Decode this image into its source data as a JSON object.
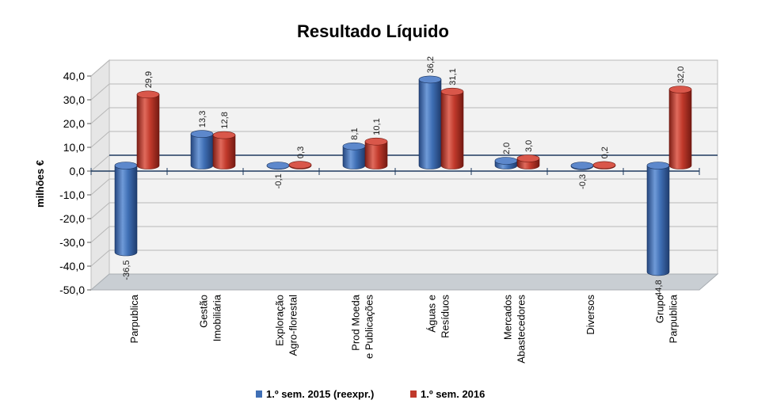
{
  "chart_data": {
    "type": "bar",
    "title": "Resultado Líquido",
    "ylabel": "milhões €",
    "ylim": [
      -50,
      40
    ],
    "yticks": [
      "40,0",
      "30,0",
      "20,0",
      "10,0",
      "0,0",
      "-10,0",
      "-20,0",
      "-30,0",
      "-40,0",
      "-50,0"
    ],
    "categories": [
      [
        "Parpublica"
      ],
      [
        "Gestão",
        "Imobiliária"
      ],
      [
        "Exploração",
        "Agro-florestal"
      ],
      [
        "Prod Moeda",
        "e Publicações"
      ],
      [
        "Águas e",
        "Resíduos"
      ],
      [
        "Mercados",
        "Abastecedores"
      ],
      [
        "Diversos"
      ],
      [
        "Grupo",
        "Parpublica"
      ]
    ],
    "series": [
      {
        "name": "1.º sem. 2015 (reexpr.)",
        "color": "#3f6fb5",
        "values": [
          -36.5,
          13.3,
          -0.1,
          8.1,
          36.2,
          2.0,
          -0.3,
          -44.8
        ],
        "labels": [
          "-36,5",
          "13,3",
          "-0,1",
          "8,1",
          "36,2",
          "2,0",
          "-0,3",
          "-44,8"
        ]
      },
      {
        "name": "1.º sem. 2016",
        "color": "#c0392b",
        "values": [
          29.9,
          12.8,
          0.3,
          10.1,
          31.1,
          3.0,
          0.2,
          32.0
        ],
        "labels": [
          "29,9",
          "12,8",
          "0,3",
          "10,1",
          "31,1",
          "3,0",
          "0,2",
          "32,0"
        ]
      }
    ],
    "grid": true,
    "legend_position": "bottom"
  }
}
